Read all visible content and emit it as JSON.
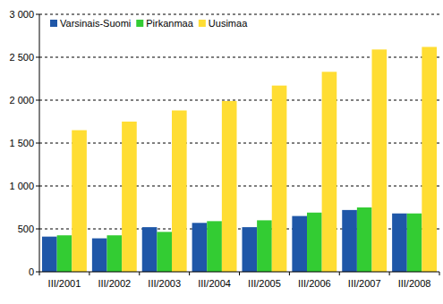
{
  "chart_data": {
    "type": "bar",
    "categories": [
      "III/2001",
      "III/2002",
      "III/2003",
      "III/2004",
      "III/2005",
      "III/2006",
      "III/2007",
      "III/2008"
    ],
    "series": [
      {
        "name": "Varsinais-Suomi",
        "color": "#1f57a8",
        "values": [
          410,
          390,
          520,
          570,
          520,
          650,
          720,
          680
        ]
      },
      {
        "name": "Pirkanmaa",
        "color": "#33cc33",
        "values": [
          425,
          425,
          465,
          590,
          600,
          690,
          750,
          680
        ]
      },
      {
        "name": "Uusimaa",
        "color": "#ffdd33",
        "values": [
          1650,
          1750,
          1880,
          1990,
          2170,
          2330,
          2590,
          2620
        ]
      }
    ],
    "ylim": [
      0,
      3000
    ],
    "yticks": [
      0,
      500,
      {
        "value": 1000,
        "label": "1 000"
      },
      {
        "value": 1500,
        "label": "1 500"
      },
      {
        "value": 2000,
        "label": "2 000"
      },
      {
        "value": 2500,
        "label": "2 500"
      },
      {
        "value": 3000,
        "label": "3 000"
      }
    ],
    "grid": true,
    "legend": "top-left"
  }
}
